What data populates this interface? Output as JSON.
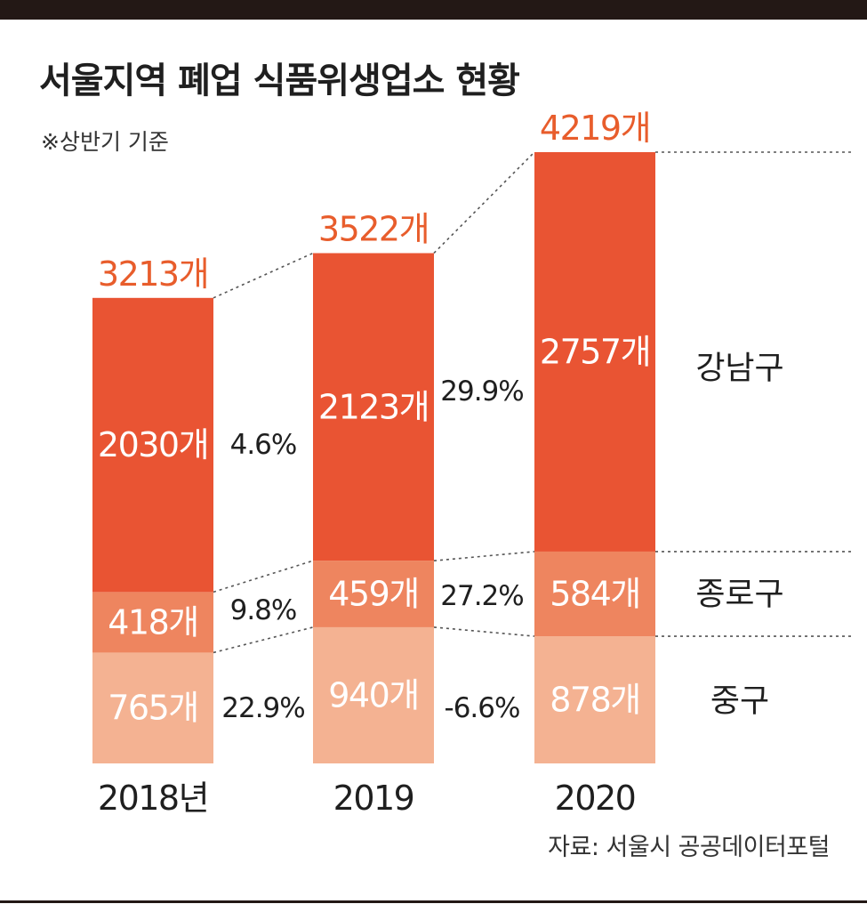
{
  "header": {
    "title": "서울지역 폐업 식품위생업소 현황",
    "note": "※상반기 기준"
  },
  "footer": {
    "source": "자료: 서울시 공공데이터포털"
  },
  "colors": {
    "gangnam": "#e95433",
    "jongno": "#ee855f",
    "junggu": "#f4b292",
    "total_text": "#e85d2c",
    "bar_label": "#ffffff",
    "text": "#1f1f1f"
  },
  "chart_data": {
    "type": "bar",
    "stacked": true,
    "title": "서울지역 폐업 식품위생업소 현황",
    "subtitle": "※상반기 기준",
    "categories": [
      "2018년",
      "2019",
      "2020"
    ],
    "series": [
      {
        "name": "중구",
        "values": [
          765,
          940,
          878
        ],
        "labels": [
          "765개",
          "940개",
          "878개"
        ]
      },
      {
        "name": "종로구",
        "values": [
          418,
          459,
          584
        ],
        "labels": [
          "418개",
          "459개",
          "584개"
        ]
      },
      {
        "name": "강남구",
        "values": [
          2030,
          2123,
          2757
        ],
        "labels": [
          "2030개",
          "2123개",
          "2757개"
        ]
      }
    ],
    "totals": [
      3213,
      3522,
      4219
    ],
    "total_labels": [
      "3213개",
      "3522개",
      "4219개"
    ],
    "change_labels": {
      "강남구": [
        "4.6%",
        "29.9%"
      ],
      "종로구": [
        "9.8%",
        "27.2%"
      ],
      "중구": [
        "22.9%",
        "-6.6%"
      ]
    },
    "ylim": [
      0,
      4219
    ],
    "grid": false,
    "legend": "right"
  }
}
